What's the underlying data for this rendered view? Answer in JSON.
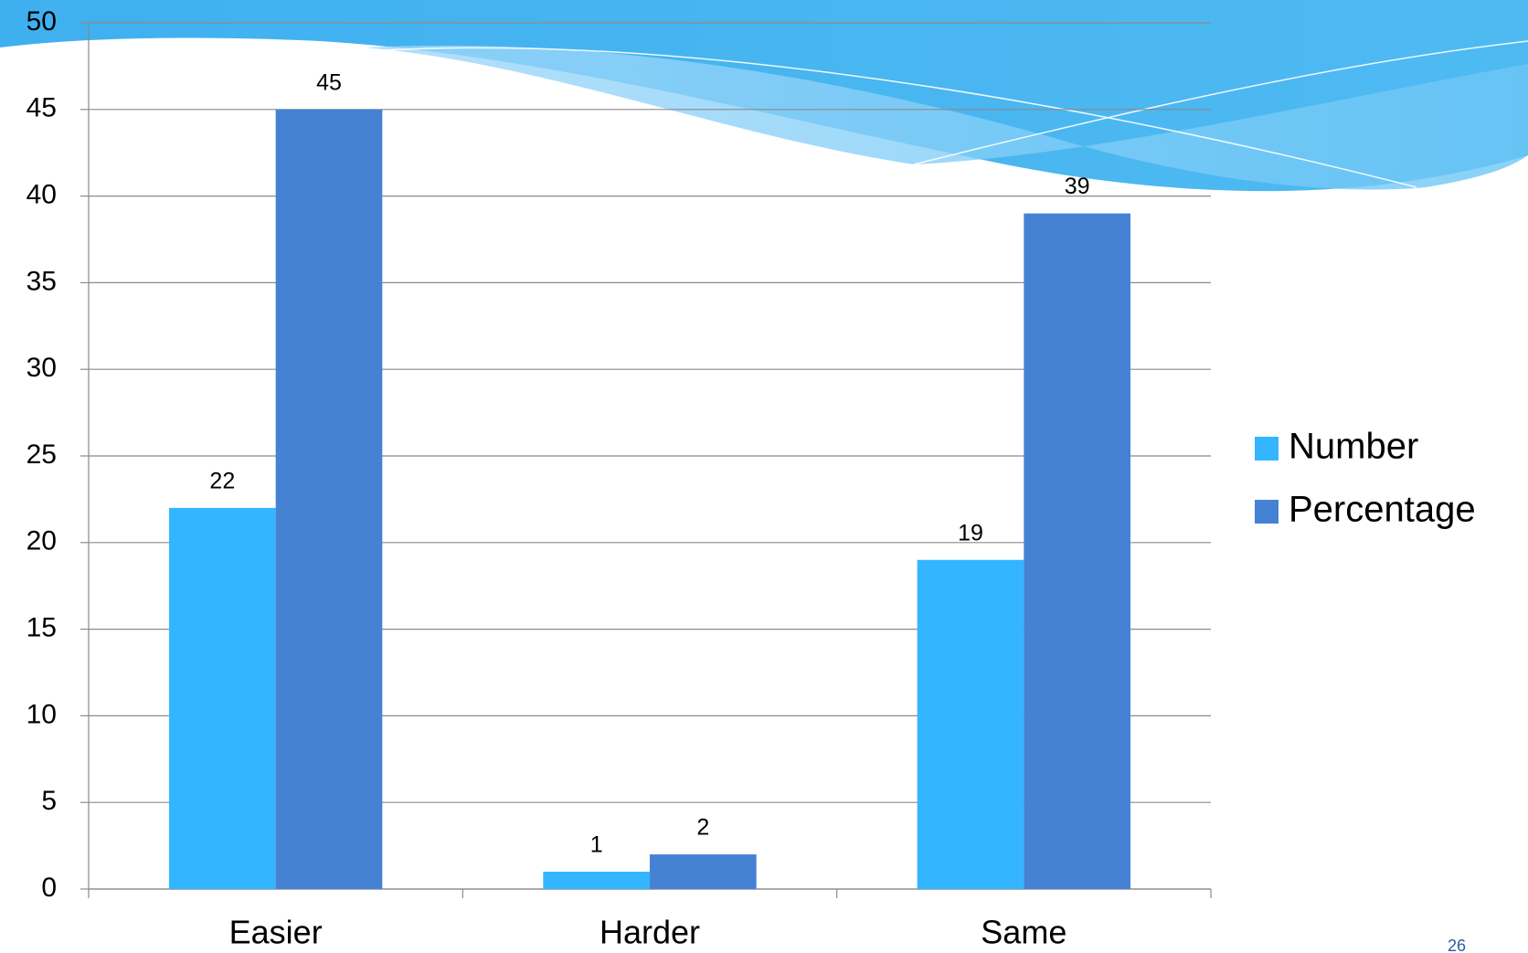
{
  "chart_data": {
    "type": "bar",
    "categories": [
      "Easier",
      "Harder",
      "Same"
    ],
    "series": [
      {
        "name": "Number",
        "color": "#33b5ff",
        "values": [
          22,
          1,
          19
        ]
      },
      {
        "name": "Percentage",
        "color": "#4682d4",
        "values": [
          45,
          2,
          39
        ]
      }
    ],
    "ylim": [
      0,
      50
    ],
    "yticks": [
      0,
      5,
      10,
      15,
      20,
      25,
      30,
      35,
      40,
      45,
      50
    ],
    "grid": true,
    "legend": "right",
    "data_labels": true
  },
  "slide_number": "26"
}
